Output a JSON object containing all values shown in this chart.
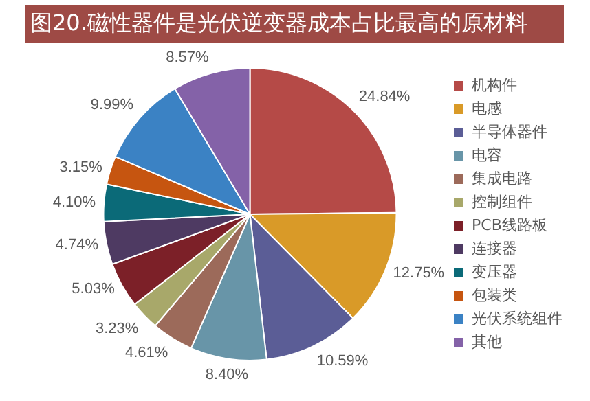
{
  "chart_data": {
    "type": "pie",
    "title": "图20.磁性器件是光伏逆变器成本占比最高的原材料",
    "categories": [
      "机构件",
      "电感",
      "半导体器件",
      "电容",
      "集成电路",
      "控制组件",
      "PCB线路板",
      "连接器",
      "变压器",
      "包装类",
      "光伏系统组件",
      "其他"
    ],
    "values": [
      24.84,
      12.75,
      10.59,
      8.4,
      4.61,
      3.23,
      5.03,
      4.74,
      4.1,
      3.15,
      9.99,
      8.57
    ],
    "value_labels": [
      "24.84%",
      "12.75%",
      "10.59%",
      "8.40%",
      "4.61%",
      "3.23%",
      "5.03%",
      "4.74%",
      "4.10%",
      "3.15%",
      "9.99%",
      "8.57%"
    ],
    "colors": [
      "#b54a47",
      "#d99a28",
      "#5b5d96",
      "#6895a8",
      "#9c6a5a",
      "#a8a86a",
      "#7c2028",
      "#4e3a62",
      "#0b6a78",
      "#c65510",
      "#3b82c4",
      "#8462a8"
    ],
    "legend": "right"
  }
}
